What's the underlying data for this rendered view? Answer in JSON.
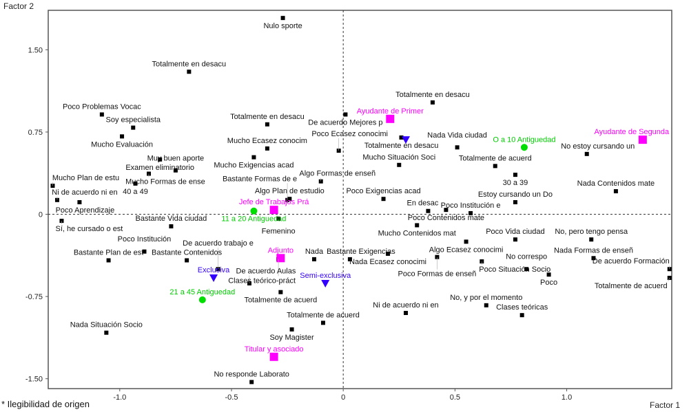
{
  "footnote": "* Ilegibilidad de origen",
  "colors": {
    "marker": "#000000",
    "cargo": "#ff00ff",
    "antiguedad": "#00dd00",
    "dedicacion": "#3300ff"
  },
  "chart_data": {
    "type": "scatter",
    "title": "",
    "xlabel": "Factor 1",
    "ylabel": "Factor 2",
    "xlim": [
      -1.32,
      1.47
    ],
    "ylim": [
      -1.59,
      1.86
    ],
    "xticks": [
      -1.0,
      -0.5,
      0,
      0.5,
      1.0
    ],
    "xtick_labels": [
      "-1.0",
      "-0.5",
      "0",
      "0.5",
      "1.0"
    ],
    "yticks": [
      1.5,
      0.75,
      0,
      -0.75,
      -1.5
    ],
    "ytick_labels": [
      "1.50",
      "0.75",
      "0",
      "-0.75",
      "-1.50"
    ],
    "grid": false,
    "reference_lines": "dashed at x=0 and y=0",
    "series": [
      {
        "name": "modalidades",
        "marker": "square",
        "points": [
          {
            "label": "Nulo sporte",
            "x": -0.27,
            "y": 1.79
          },
          {
            "label": "Totalmente en desacu",
            "x": -0.69,
            "y": 1.3
          },
          {
            "label": "Poco Problemas Vocac",
            "x": -1.08,
            "y": 0.91
          },
          {
            "label": "Soy especialista",
            "x": -0.94,
            "y": 0.79
          },
          {
            "label": "Mucho Evaluación",
            "x": -0.99,
            "y": 0.71
          },
          {
            "label": "Totalmente en desacu",
            "x": -0.34,
            "y": 0.82
          },
          {
            "label": "De acuerdo Mejores p",
            "x": 0.01,
            "y": 0.91
          },
          {
            "label": "Totalmente en desacu",
            "x": 0.4,
            "y": 1.02
          },
          {
            "label": "Totalmente en desacu",
            "x": 0.26,
            "y": 0.7
          },
          {
            "label": "Nada Vida ciudad",
            "x": 0.51,
            "y": 0.61
          },
          {
            "label": "No estoy cursando un",
            "x": 1.09,
            "y": 0.55
          },
          {
            "label": "Totalmente de acuerd",
            "x": 0.68,
            "y": 0.44
          },
          {
            "label": "30 a 39",
            "x": 0.77,
            "y": 0.36
          },
          {
            "label": "Estoy cursando un Do",
            "x": 0.77,
            "y": 0.11
          },
          {
            "label": "Mucho Situación Soci",
            "x": 0.25,
            "y": 0.45
          },
          {
            "label": "Nada Contenidos mate",
            "x": 1.22,
            "y": 0.21
          },
          {
            "label": "Mucho Ecasez conocim",
            "x": -0.34,
            "y": 0.6
          },
          {
            "label": "Mucho Exigencias acad",
            "x": -0.4,
            "y": 0.52
          },
          {
            "label": "Examen eliminatorio",
            "x": -0.82,
            "y": 0.5
          },
          {
            "label": "Muy buen aporte",
            "x": -0.75,
            "y": 0.4
          },
          {
            "label": "Mucho Plan de estu",
            "x": -1.3,
            "y": 0.26
          },
          {
            "label": "Ni de acuerdo ni en",
            "x": -1.28,
            "y": 0.13
          },
          {
            "label": "Poco Aprendizaje",
            "x": -1.18,
            "y": 0.11
          },
          {
            "label": "40 a 49",
            "x": -0.93,
            "y": 0.28
          },
          {
            "label": "Mucho Formas de ense",
            "x": -0.87,
            "y": 0.37
          },
          {
            "label": "Sí, he cursado o est",
            "x": -1.26,
            "y": -0.06
          },
          {
            "label": "Bastante Vida ciudad",
            "x": -0.77,
            "y": -0.11
          },
          {
            "label": "Femenino",
            "x": -0.29,
            "y": -0.04
          },
          {
            "label": "Algo Plan de estudio",
            "x": -0.24,
            "y": 0.14
          },
          {
            "label": "Algo Formas de enseñ",
            "x": -0.1,
            "y": 0.3
          },
          {
            "label": "Bastante Formas de e",
            "x": -0.25,
            "y": 0.13
          },
          {
            "label": "Poco Ecasez conocimi",
            "x": -0.02,
            "y": 0.58
          },
          {
            "label": "Poco Exigencias acad",
            "x": 0.18,
            "y": 0.14
          },
          {
            "label": "Poco Institución e",
            "x": 0.57,
            "y": 0.01
          },
          {
            "label": "Poco Contenidos mate",
            "x": 0.46,
            "y": 0.04
          },
          {
            "label": "En desac",
            "x": 0.38,
            "y": 0.03
          },
          {
            "label": "Mucho Contenidos mat",
            "x": 0.33,
            "y": -0.1
          },
          {
            "label": "Poco Vida ciudad",
            "x": 0.77,
            "y": -0.23
          },
          {
            "label": "No, pero tengo pensa",
            "x": 1.11,
            "y": -0.23
          },
          {
            "label": "Nada Formas de enseñ",
            "x": 1.12,
            "y": -0.4
          },
          {
            "label": "De acuerdo Formación",
            "x": 1.46,
            "y": -0.5
          },
          {
            "label": "Totalmente de acuerd",
            "x": 1.46,
            "y": -0.58
          },
          {
            "label": "Clases teórico-práct",
            "x": -0.29,
            "y": -0.41
          },
          {
            "label": "Nada",
            "x": -0.13,
            "y": -0.41
          },
          {
            "label": "Bastante Contenidos",
            "x": -0.7,
            "y": -0.42
          },
          {
            "label": "Poco Institución",
            "x": -0.89,
            "y": -0.34
          },
          {
            "label": "Bastante Plan de est",
            "x": -1.05,
            "y": -0.42
          },
          {
            "label": "De acuerdo trabajo e",
            "x": -0.56,
            "y": -0.5
          },
          {
            "label": "De acuerdo Aulas",
            "x": -0.42,
            "y": -0.63
          },
          {
            "label": "Totalmente de acuerd",
            "x": -0.28,
            "y": -0.71
          },
          {
            "label": "Bastante Exigencias",
            "x": 0.03,
            "y": -0.41
          },
          {
            "label": "Nada Ecasez conocimi",
            "x": 0.2,
            "y": -0.36
          },
          {
            "label": "Algo Ecasez conocimi",
            "x": 0.55,
            "y": -0.25
          },
          {
            "label": "Poco Formas de enseñ",
            "x": 0.42,
            "y": -0.39
          },
          {
            "label": "Poco Situación Socio",
            "x": 0.62,
            "y": -0.43
          },
          {
            "label": "No correspo",
            "x": 0.82,
            "y": -0.5
          },
          {
            "label": "Poco",
            "x": 0.92,
            "y": -0.55
          },
          {
            "label": "Totalmente de acuerd",
            "x": -0.09,
            "y": -0.99
          },
          {
            "label": "Soy Magister",
            "x": -0.23,
            "y": -1.05
          },
          {
            "label": "Nada Situación Socio",
            "x": -1.06,
            "y": -1.08
          },
          {
            "label": "No responde Laborato",
            "x": -0.41,
            "y": -1.53
          },
          {
            "label": "Ni de acuerdo ni en",
            "x": 0.28,
            "y": -0.9
          },
          {
            "label": "No, y por el momento",
            "x": 0.64,
            "y": -0.83
          },
          {
            "label": "Clases teóricas",
            "x": 0.8,
            "y": -0.92
          }
        ]
      },
      {
        "name": "cargo",
        "marker": "magenta-square",
        "points": [
          {
            "label": "Ayudante de Primer",
            "x": 0.21,
            "y": 0.87
          },
          {
            "label": "Ayudante de Segunda",
            "x": 1.34,
            "y": 0.68
          },
          {
            "label": "Jefe de Trabajos Prá",
            "x": -0.31,
            "y": 0.04
          },
          {
            "label": "Adjunto",
            "x": -0.28,
            "y": -0.4
          },
          {
            "label": "Titular y asociado",
            "x": -0.31,
            "y": -1.3
          }
        ]
      },
      {
        "name": "antiguedad",
        "marker": "green-circle",
        "points": [
          {
            "label": "O a 10 Antiguedad",
            "x": 0.81,
            "y": 0.61
          },
          {
            "label": "11 a 20 Antiguedad",
            "x": -0.4,
            "y": 0.03
          },
          {
            "label": "21 a 45 Antiguedad",
            "x": -0.63,
            "y": -0.78
          }
        ]
      },
      {
        "name": "dedicacion",
        "marker": "blue-triangle",
        "points": [
          {
            "label": "",
            "x": 0.28,
            "y": 0.68
          },
          {
            "label": "Exclusiva",
            "x": -0.58,
            "y": -0.58
          },
          {
            "label": "Semi-exclusiva",
            "x": -0.08,
            "y": -0.63
          }
        ]
      }
    ]
  }
}
